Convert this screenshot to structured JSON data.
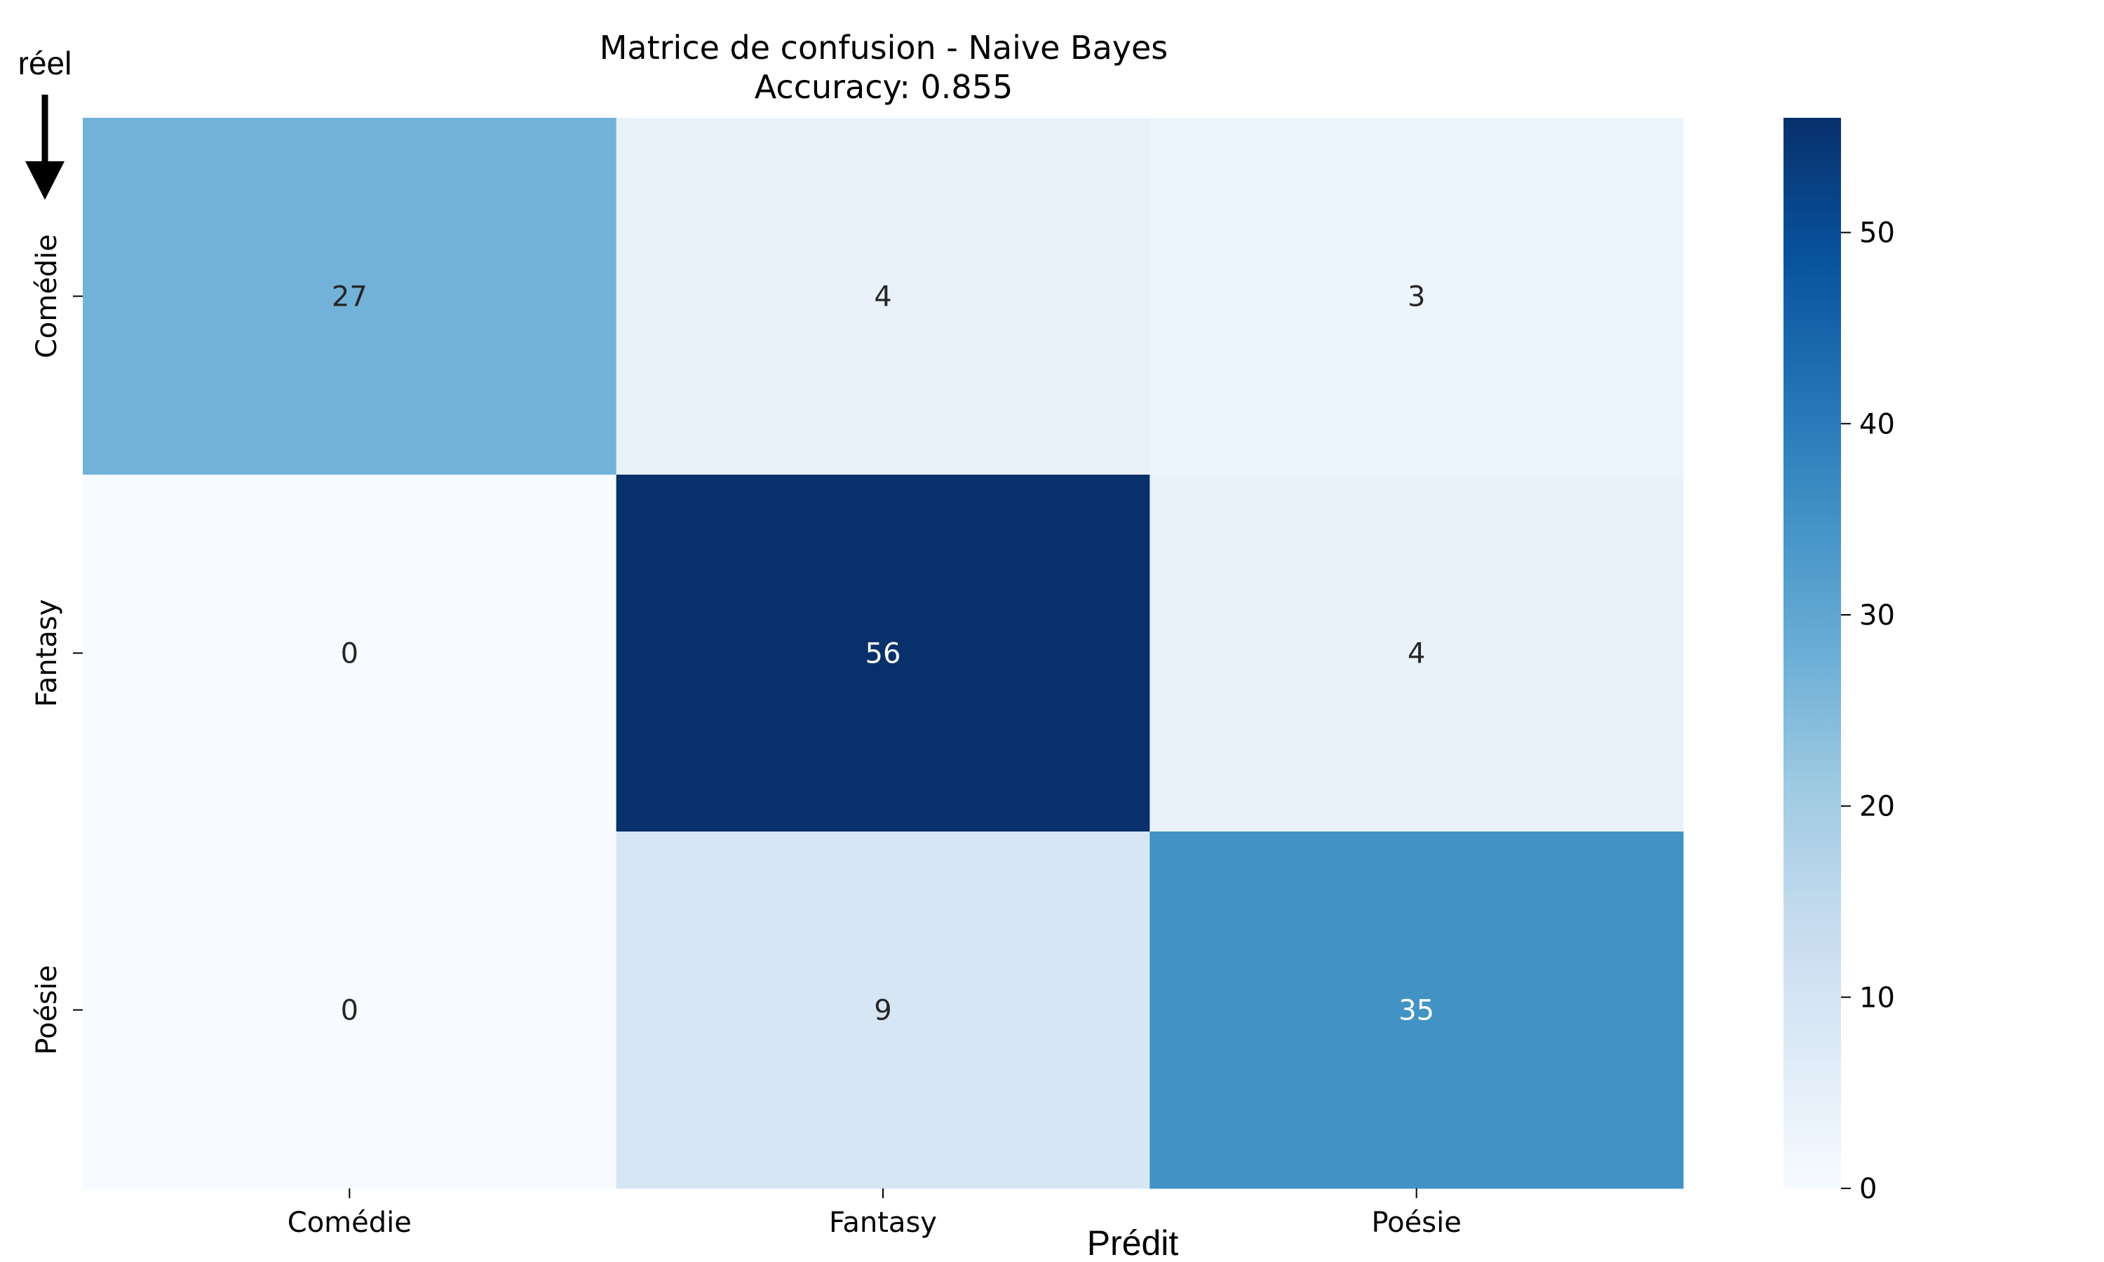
{
  "chart_data": {
    "type": "heatmap",
    "title": "Matrice de confusion - Naive Bayes",
    "subtitle": "Accuracy: 0.855",
    "xlabel": "Prédit",
    "ylabel": "réel",
    "x_categories": [
      "Comédie",
      "Fantasy",
      "Poésie"
    ],
    "y_categories": [
      "Comédie",
      "Fantasy",
      "Poésie"
    ],
    "values": [
      [
        27,
        4,
        3
      ],
      [
        0,
        56,
        4
      ],
      [
        0,
        9,
        35
      ]
    ],
    "colormap": "Blues",
    "vmin": 0,
    "vmax": 56,
    "colorbar_ticks": [
      0,
      10,
      20,
      30,
      40,
      50
    ],
    "colorbar_tick_labels": [
      "0",
      "10",
      "20",
      "30",
      "40",
      "50"
    ],
    "grid": false,
    "colors": {
      "low": "#f7fbff",
      "high": "#08306b",
      "text_dark": "#262626",
      "text_light": "#ffffff"
    }
  }
}
